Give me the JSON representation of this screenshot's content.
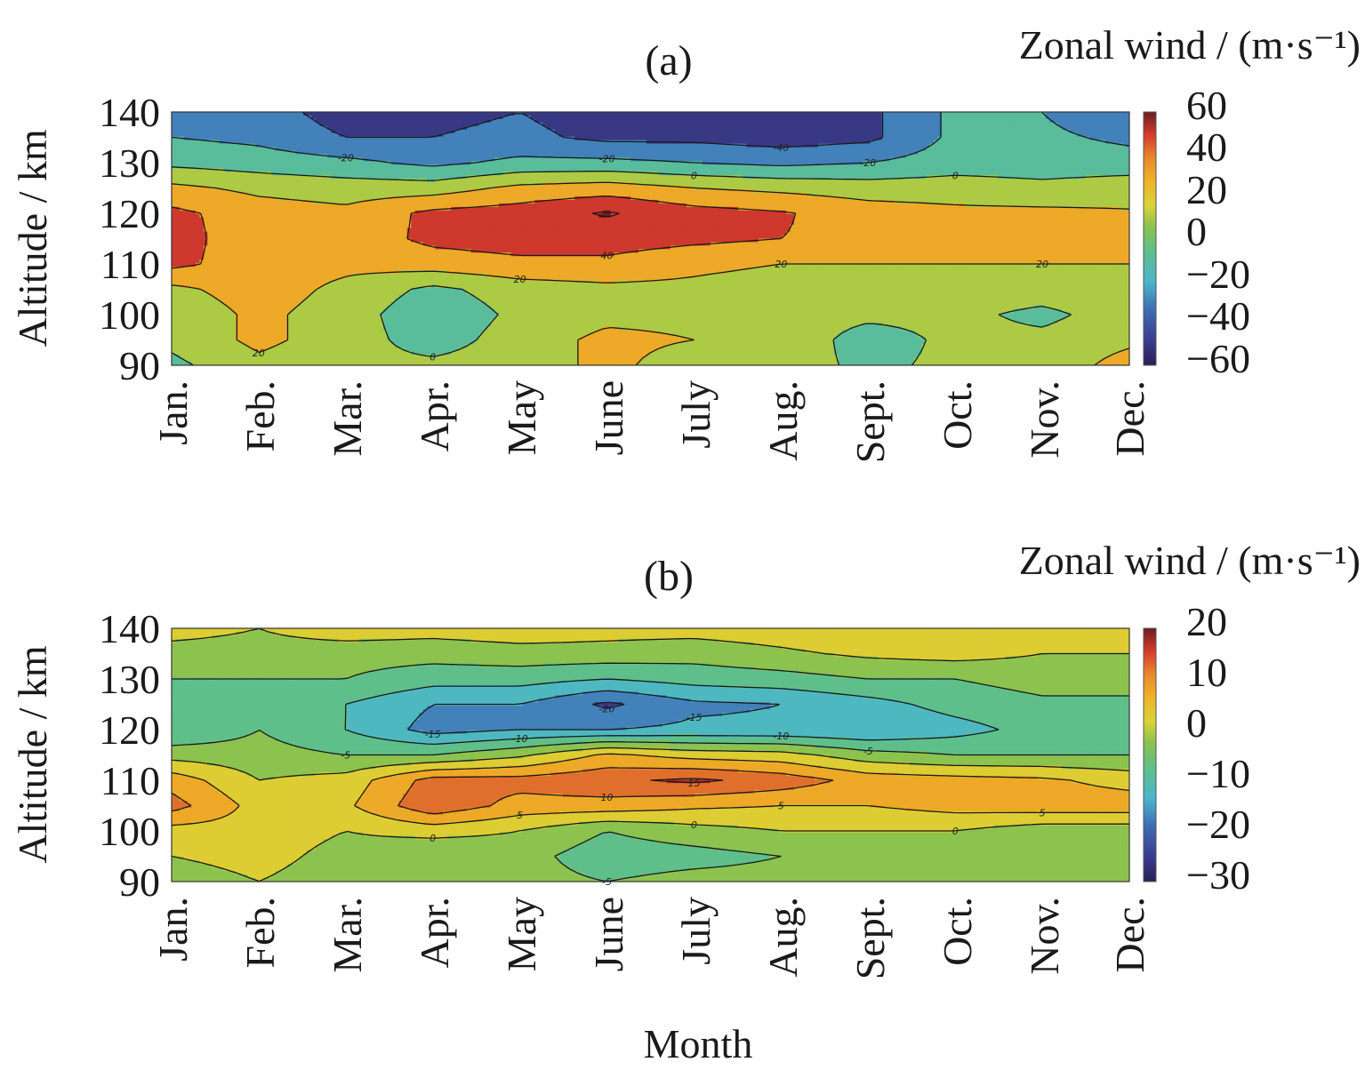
{
  "xlabel": "Month",
  "chart_data": [
    {
      "type": "heatmap",
      "panel_label": "(a)",
      "colorbar_title": "Zonal wind / (m·s⁻¹)",
      "ylabel": "Altitude / km",
      "ylim": [
        90,
        140
      ],
      "yticks": [
        "140",
        "130",
        "120",
        "110",
        "100",
        "90"
      ],
      "x_categories": [
        "Jan.",
        "Feb.",
        "Mar.",
        "Apr.",
        "May",
        "June",
        "July",
        "Aug.",
        "Sept.",
        "Oct.",
        "Nov.",
        "Dec."
      ],
      "colorbar_ticks": [
        "60",
        "40",
        "20",
        "0",
        "−20",
        "−40",
        "−60"
      ],
      "clim": [
        -60,
        60
      ],
      "contour_levels": [
        -60,
        -40,
        -20,
        0,
        20,
        40,
        60
      ],
      "altitudes_km": [
        90,
        95,
        100,
        105,
        110,
        115,
        120,
        125,
        130,
        135,
        140
      ],
      "values": [
        [
          -5,
          15,
          5,
          5,
          10,
          25,
          10,
          10,
          -5,
          5,
          5,
          30
        ],
        [
          5,
          25,
          10,
          -10,
          10,
          25,
          20,
          15,
          -10,
          5,
          5,
          15
        ],
        [
          5,
          25,
          10,
          -15,
          5,
          15,
          15,
          10,
          5,
          5,
          -5,
          10
        ],
        [
          15,
          30,
          15,
          -5,
          10,
          15,
          15,
          10,
          10,
          10,
          10,
          15
        ],
        [
          45,
          30,
          25,
          30,
          35,
          35,
          25,
          20,
          20,
          20,
          20,
          20
        ],
        [
          50,
          25,
          28,
          45,
          50,
          50,
          45,
          40,
          35,
          25,
          25,
          25
        ],
        [
          45,
          30,
          25,
          45,
          50,
          62,
          48,
          42,
          30,
          25,
          25,
          22
        ],
        [
          25,
          15,
          10,
          10,
          25,
          30,
          20,
          15,
          10,
          10,
          5,
          10
        ],
        [
          -5,
          -10,
          -15,
          -25,
          -15,
          -15,
          -20,
          -25,
          -20,
          -10,
          -10,
          -10
        ],
        [
          -20,
          -25,
          -40,
          -40,
          -35,
          -45,
          -45,
          -50,
          -45,
          -15,
          -15,
          -25
        ],
        [
          -25,
          -30,
          -50,
          -45,
          -40,
          -50,
          -50,
          -55,
          -45,
          -15,
          -20,
          -40
        ]
      ]
    },
    {
      "type": "heatmap",
      "panel_label": "(b)",
      "colorbar_title": "Zonal wind / (m·s⁻¹)",
      "ylabel": "Altitude / km",
      "ylim": [
        90,
        140
      ],
      "yticks": [
        "140",
        "130",
        "120",
        "110",
        "100",
        "90"
      ],
      "x_categories": [
        "Jan.",
        "Feb.",
        "Mar.",
        "Apr.",
        "May",
        "June",
        "July",
        "Aug.",
        "Sept.",
        "Oct.",
        "Nov.",
        "Dec."
      ],
      "colorbar_ticks": [
        "20",
        "10",
        "0",
        "−10",
        "−20",
        "−30"
      ],
      "clim": [
        -30,
        20
      ],
      "contour_levels": [
        -20,
        -15,
        -10,
        -5,
        0,
        5,
        10,
        15
      ],
      "altitudes_km": [
        90,
        95,
        100,
        105,
        110,
        115,
        120,
        125,
        130,
        135,
        140
      ],
      "values": [
        [
          -3,
          0,
          -3,
          -3,
          -3,
          -5,
          -3,
          -3,
          -3,
          -3,
          -3,
          -3
        ],
        [
          0,
          2,
          -2,
          -5,
          -3,
          -8,
          -7,
          -5,
          -3,
          -3,
          -3,
          -3
        ],
        [
          3,
          3,
          0,
          2,
          0,
          -5,
          -2,
          0,
          0,
          0,
          -3,
          -3
        ],
        [
          12,
          3,
          4,
          14,
          8,
          8,
          6,
          5,
          5,
          7,
          8,
          8
        ],
        [
          8,
          0,
          2,
          12,
          12,
          14,
          16,
          13,
          8,
          7,
          6,
          3
        ],
        [
          -2,
          -3,
          -5,
          -5,
          -1,
          6,
          3,
          2,
          -3,
          -5,
          -5,
          -5
        ],
        [
          -10,
          -5,
          -10,
          -17,
          -15,
          -15,
          -14,
          -14,
          -15,
          -12,
          -8,
          -6
        ],
        [
          -10,
          -5,
          -10,
          -15,
          -15,
          -21,
          -16,
          -15,
          -12,
          -8,
          -6,
          -6
        ],
        [
          -5,
          -5,
          -5,
          -8,
          -8,
          -10,
          -8,
          -7,
          -5,
          -5,
          -3,
          -3
        ],
        [
          -2,
          -2,
          -3,
          -3,
          -2,
          -2,
          -3,
          -1,
          1,
          2,
          0,
          0
        ],
        [
          2,
          0,
          3,
          2,
          3,
          2,
          2,
          3,
          5,
          3,
          2,
          2
        ]
      ]
    }
  ]
}
